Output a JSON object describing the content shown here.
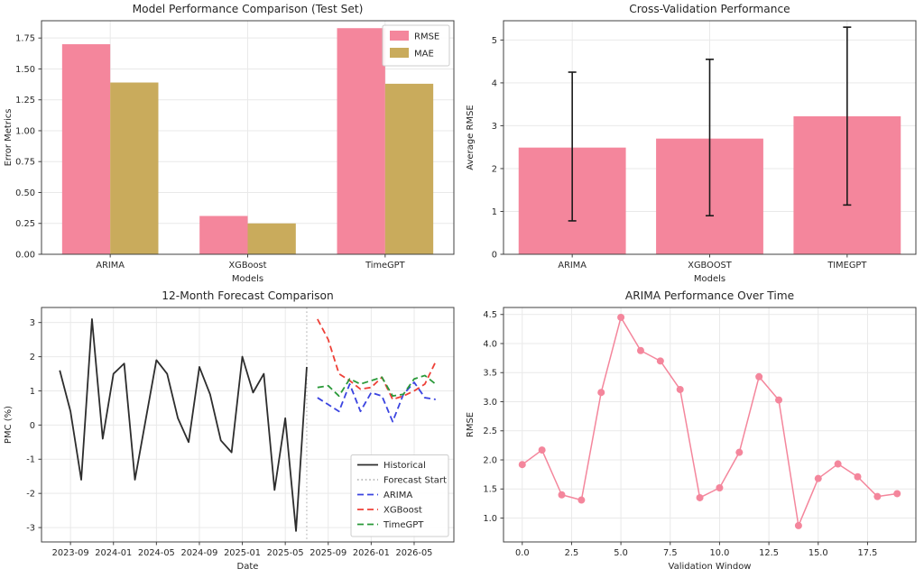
{
  "page": {
    "background": "#ffffff"
  },
  "chart_data": [
    {
      "id": "model-performance",
      "type": "bar",
      "title": "Model Performance Comparison (Test Set)",
      "xlabel": "Models",
      "ylabel": "Error Metrics",
      "categories": [
        "ARIMA",
        "XGBoost",
        "TimeGPT"
      ],
      "series": [
        {
          "name": "RMSE",
          "color": "#f4869c",
          "values": [
            1.7,
            0.31,
            1.83
          ]
        },
        {
          "name": "MAE",
          "color": "#c9ab5c",
          "values": [
            1.39,
            0.25,
            1.38
          ]
        }
      ],
      "bar_width": 0.35,
      "xlim": [
        -0.5,
        2.5
      ],
      "ylim": [
        0,
        1.89
      ],
      "xticks": [
        0,
        1,
        2
      ],
      "xtick_labels": [
        "ARIMA",
        "XGBoost",
        "TimeGPT"
      ],
      "yticks": [
        0,
        0.25,
        0.5,
        0.75,
        1.0,
        1.25,
        1.5,
        1.75
      ],
      "ytick_labels": [
        "0.00",
        "0.25",
        "0.50",
        "0.75",
        "1.00",
        "1.25",
        "1.50",
        "1.75"
      ],
      "grid": true,
      "legend": {
        "position": "upper-right",
        "style": "patch",
        "entries": [
          {
            "label": "RMSE",
            "color": "#f4869c"
          },
          {
            "label": "MAE",
            "color": "#c9ab5c"
          }
        ]
      }
    },
    {
      "id": "cross-validation",
      "type": "bar",
      "title": "Cross-Validation Performance",
      "xlabel": "Models",
      "ylabel": "Average RMSE",
      "categories": [
        "ARIMA",
        "XGBOOST",
        "TIMEGPT"
      ],
      "series": [
        {
          "name": "Average RMSE",
          "color": "#f4869c",
          "values": [
            2.49,
            2.7,
            3.22
          ]
        }
      ],
      "error_bars": {
        "color": "#1a1a1a",
        "low": [
          0.78,
          0.9,
          1.15
        ],
        "high": [
          4.25,
          4.55,
          5.3
        ]
      },
      "bar_width": 0.78,
      "xlim": [
        -0.5,
        2.5
      ],
      "ylim": [
        0,
        5.45
      ],
      "xticks": [
        0,
        1,
        2
      ],
      "xtick_labels": [
        "ARIMA",
        "XGBOOST",
        "TIMEGPT"
      ],
      "yticks": [
        0,
        1,
        2,
        3,
        4,
        5
      ],
      "ytick_labels": [
        "0",
        "1",
        "2",
        "3",
        "4",
        "5"
      ],
      "grid": true
    },
    {
      "id": "forecast-comparison",
      "type": "line",
      "title": "12-Month Forecast Comparison",
      "xlabel": "Date",
      "ylabel": "PMC (%)",
      "xlim": [
        -1.7,
        36.7
      ],
      "ylim": [
        -3.42,
        3.44
      ],
      "xticks": [
        1,
        5,
        9,
        13,
        17,
        21,
        25,
        29,
        33
      ],
      "xtick_labels": [
        "2023-09",
        "2024-01",
        "2024-05",
        "2024-09",
        "2025-01",
        "2025-05",
        "2025-09",
        "2026-01",
        "2026-05"
      ],
      "yticks": [
        -3,
        -2,
        -1,
        0,
        1,
        2,
        3
      ],
      "ytick_labels": [
        "-3",
        "-2",
        "-1",
        "0",
        "1",
        "2",
        "3"
      ],
      "grid": true,
      "series": [
        {
          "name": "Historical",
          "color": "#2d2d2d",
          "style": "solid",
          "width": 1.8,
          "x_start": 0,
          "values": [
            1.6,
            0.4,
            -1.6,
            3.1,
            -0.4,
            1.5,
            1.8,
            -1.6,
            0.15,
            1.9,
            1.5,
            0.2,
            -0.5,
            1.7,
            0.9,
            -0.45,
            -0.8,
            2.0,
            0.95,
            1.5,
            -1.9,
            0.2,
            -3.1,
            1.7
          ]
        },
        {
          "name": "ARIMA",
          "color": "#3b44e0",
          "style": "dashed",
          "width": 1.8,
          "x_start": 24,
          "values": [
            0.8,
            0.6,
            0.4,
            1.2,
            0.4,
            0.95,
            0.85,
            0.1,
            0.9,
            1.25,
            0.8,
            0.75
          ]
        },
        {
          "name": "XGBoost",
          "color": "#ee4037",
          "style": "dashed",
          "width": 1.8,
          "x_start": 24,
          "values": [
            3.1,
            2.5,
            1.5,
            1.3,
            1.05,
            1.1,
            1.4,
            0.75,
            0.85,
            1.0,
            1.2,
            1.85
          ]
        },
        {
          "name": "TimeGPT",
          "color": "#2a9939",
          "style": "dashed",
          "width": 1.8,
          "x_start": 24,
          "values": [
            1.1,
            1.15,
            0.85,
            1.35,
            1.2,
            1.3,
            1.4,
            0.85,
            0.9,
            1.35,
            1.45,
            1.2
          ]
        }
      ],
      "vline": {
        "x": 23,
        "color": "#b8b8b8",
        "style": "dotted",
        "label": "Forecast Start"
      },
      "legend": {
        "position": "lower-right",
        "style": "line",
        "entries": [
          {
            "label": "Historical",
            "color": "#2d2d2d",
            "dash": "solid"
          },
          {
            "label": "Forecast Start",
            "color": "#b8b8b8",
            "dash": "dotted"
          },
          {
            "label": "ARIMA",
            "color": "#3b44e0",
            "dash": "dashed"
          },
          {
            "label": "XGBoost",
            "color": "#ee4037",
            "dash": "dashed"
          },
          {
            "label": "TimeGPT",
            "color": "#2a9939",
            "dash": "dashed"
          }
        ]
      }
    },
    {
      "id": "arima-performance",
      "type": "line",
      "title": "ARIMA Performance Over Time",
      "xlabel": "Validation Window",
      "ylabel": "RMSE",
      "xlim": [
        -0.95,
        19.95
      ],
      "ylim": [
        0.59,
        4.62
      ],
      "xticks": [
        0,
        2.5,
        5,
        7.5,
        10,
        12.5,
        15,
        17.5
      ],
      "xtick_labels": [
        "0.0",
        "2.5",
        "5.0",
        "7.5",
        "10.0",
        "12.5",
        "15.0",
        "17.5"
      ],
      "yticks": [
        1.0,
        1.5,
        2.0,
        2.5,
        3.0,
        3.5,
        4.0,
        4.5
      ],
      "ytick_labels": [
        "1.0",
        "1.5",
        "2.0",
        "2.5",
        "3.0",
        "3.5",
        "4.0",
        "4.5"
      ],
      "grid": true,
      "series": [
        {
          "name": "RMSE",
          "color": "#f4869c",
          "style": "solid",
          "width": 1.5,
          "marker": 4,
          "x_start": 0,
          "values": [
            1.92,
            2.17,
            1.4,
            1.31,
            3.16,
            4.45,
            3.88,
            3.7,
            3.21,
            1.35,
            1.52,
            2.13,
            3.43,
            3.03,
            0.87,
            1.68,
            1.93,
            1.71,
            1.37,
            1.42
          ]
        }
      ]
    }
  ]
}
